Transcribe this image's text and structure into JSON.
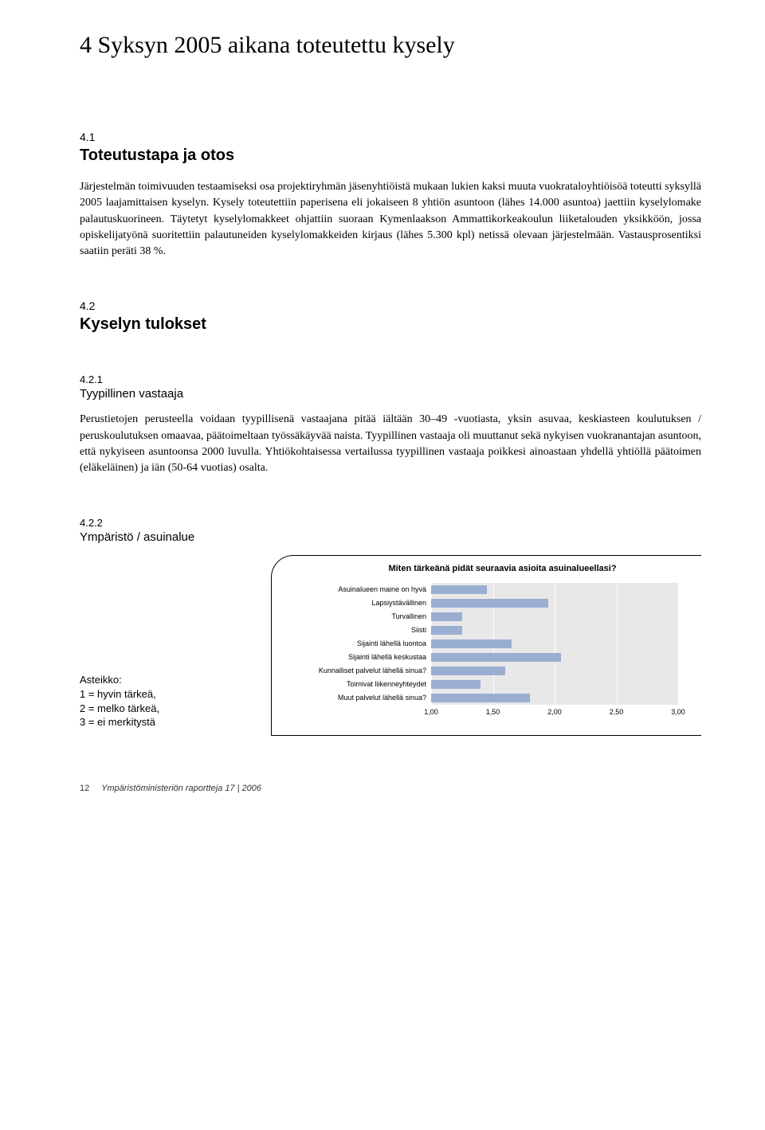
{
  "main_title": "4 Syksyn 2005 aikana toteutettu kysely",
  "sec41": {
    "num": "4.1",
    "title": "Toteutustapa ja otos",
    "body": "Järjestelmän toimivuuden testaamiseksi osa projektiryhmän jäsenyhtiöistä mukaan lukien kaksi muuta vuokrataloyhtiöisöä toteutti syksyllä 2005 laajamittaisen kyselyn. Kysely toteutettiin paperisena eli jokaiseen 8 yhtiön asuntoon (lähes 14.000 asuntoa) jaettiin kyselylomake palautuskuorineen. Täytetyt kyselylomakkeet ohjattiin suoraan Kymenlaakson Ammattikorkeakoulun liiketalouden yksikköön, jossa opiskelijatyönä suoritettiin palautuneiden kyselylomakkeiden kirjaus (lähes 5.300 kpl) netissä olevaan järjestelmään. Vastausprosentiksi saatiin peräti 38 %."
  },
  "sec42": {
    "num": "4.2",
    "title": "Kyselyn tulokset"
  },
  "sec421": {
    "num": "4.2.1",
    "title": "Tyypillinen vastaaja",
    "body": "Perustietojen perusteella voidaan tyypillisenä vastaajana pitää iältään 30–49 -vuotiasta, yksin asuvaa, keskiasteen koulutuksen / peruskoulutuksen omaavaa, päätoimeltaan työssäkäyvää naista. Tyypillinen vastaaja oli muuttanut sekä nykyisen vuokranantajan asuntoon, että nykyiseen asuntoonsa 2000 luvulla. Yhtiökohtaisessa vertailussa tyypillinen vastaaja poikkesi ainoastaan yhdellä yhtiöllä päätoimen (eläkeläinen) ja iän (50-64 vuotias) osalta."
  },
  "sec422": {
    "num": "4.2.2",
    "title": "Ympäristö / asuinalue"
  },
  "chart": {
    "title": "Miten tärkeänä pidät seuraavia asioita asuinalueellasi?",
    "type": "bar-horizontal",
    "xmin": 1.0,
    "xmax": 3.0,
    "xticks": [
      "1,00",
      "1,50",
      "2,00",
      "2,50",
      "3,00"
    ],
    "xtick_positions_pct": [
      0,
      25,
      50,
      75,
      100
    ],
    "bar_color": "#9aaed2",
    "plot_bg": "#e8e8e8",
    "grid_color": "#ffffff",
    "categories": [
      "Asuinalueen maine on hyvä",
      "Lapsiystävällinen",
      "Turvallinen",
      "Siisti",
      "Sijainti lähellä luontoa",
      "Sijainti lähellä keskustaa",
      "Kunnalliset palvelut lähellä sinua?",
      "Toimivat liikenneyhteydet",
      "Muut palvelut lähellä sinua?"
    ],
    "values": [
      1.45,
      1.95,
      1.25,
      1.25,
      1.65,
      2.05,
      1.6,
      1.4,
      1.8
    ]
  },
  "legend": {
    "title": "Asteikko:",
    "l1": "1 = hyvin tärkeä,",
    "l2": "2 = melko tärkeä,",
    "l3": "3 = ei merkitystä"
  },
  "footer": {
    "page": "12",
    "pub": "Ympäristöministeriön raportteja  17 | 2006"
  }
}
